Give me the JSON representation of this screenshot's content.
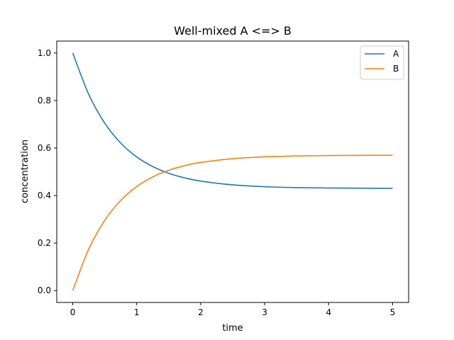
{
  "chart_data": {
    "type": "line",
    "title": "Well-mixed A <=> B",
    "xlabel": "time",
    "ylabel": "concentration",
    "xlim": [
      -0.25,
      5.25
    ],
    "ylim": [
      -0.05,
      1.05
    ],
    "xticks": [
      0,
      1,
      2,
      3,
      4,
      5
    ],
    "xtick_labels": [
      "0",
      "1",
      "2",
      "3",
      "4",
      "5"
    ],
    "yticks": [
      0.0,
      0.2,
      0.4,
      0.6,
      0.8,
      1.0
    ],
    "ytick_labels": [
      "0.0",
      "0.2",
      "0.4",
      "0.6",
      "0.8",
      "1.0"
    ],
    "grid": false,
    "legend_position": "top-right",
    "x": [
      0,
      0.25,
      0.5,
      0.75,
      1.0,
      1.25,
      1.5,
      1.75,
      2.0,
      2.5,
      3.0,
      3.5,
      4.0,
      4.5,
      5.0
    ],
    "series": [
      {
        "name": "A",
        "color": "#1f77b4",
        "values": [
          1.0,
          0.8257,
          0.7047,
          0.6207,
          0.5624,
          0.5219,
          0.4938,
          0.4743,
          0.4608,
          0.4449,
          0.4372,
          0.4335,
          0.4317,
          0.4308,
          0.4304
        ]
      },
      {
        "name": "B",
        "color": "#ff7f0e",
        "values": [
          0.0,
          0.1743,
          0.2953,
          0.3793,
          0.4376,
          0.4781,
          0.5062,
          0.5257,
          0.5392,
          0.5551,
          0.5628,
          0.5665,
          0.5683,
          0.5692,
          0.5696
        ]
      }
    ]
  }
}
